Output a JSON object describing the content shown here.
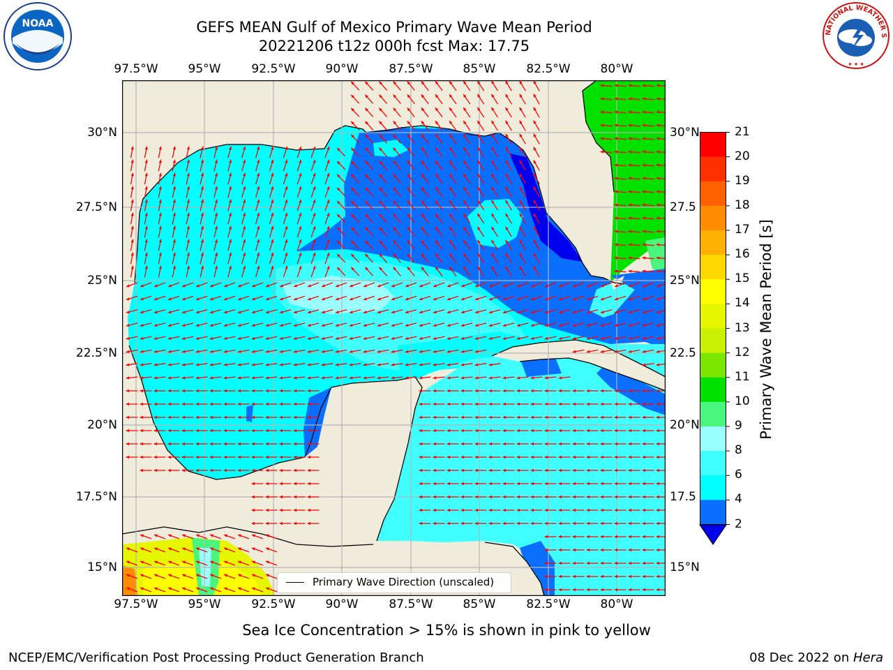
{
  "title_line1": "GEFS MEAN Gulf of Mexico Primary Wave Mean Period",
  "title_line2": "20221206 t12z 000h fcst   Max: 17.75",
  "map": {
    "lon_labels": [
      "97.5°W",
      "95°W",
      "92.5°W",
      "90°W",
      "87.5°W",
      "85°W",
      "82.5°W",
      "80°W"
    ],
    "lat_labels_left": [
      "30°N",
      "27.5°N",
      "25°N",
      "22.5°N",
      "20°N",
      "17.5°N",
      "15°N"
    ],
    "lat_labels_right": [
      "30°N",
      "27.5",
      "25°N",
      "22.5",
      "20°N",
      "17.5",
      "15°N"
    ],
    "legend_text": "Primary Wave Direction (unscaled)",
    "colors": {
      "land": "#efecdc",
      "ocean_4_6": "#00ffff",
      "ocean_6_8": "#40ffff",
      "ocean_8_9": "#9cffff",
      "ocean_2_4": "#0a6eff",
      "ocean_lt2": "#0000ee",
      "period_10_11": "#00e100",
      "period_9_10": "#4af57d",
      "period_14_15": "#e6f500",
      "period_15_16": "#ffff00",
      "period_17_18": "#ff8c00",
      "arrow": "#ff0000",
      "grid": "#b4b4b4"
    }
  },
  "colorbar": {
    "label": "Primary Wave Mean Period [s]",
    "ticks": [
      "21",
      "20",
      "19",
      "18",
      "17",
      "16",
      "15",
      "14",
      "13",
      "12",
      "11",
      "10",
      "9",
      "8",
      "6",
      "4",
      "2"
    ],
    "colors": [
      "#ff0000",
      "#ff3000",
      "#ff6000",
      "#ff8c00",
      "#ffb000",
      "#ffd800",
      "#ffff00",
      "#e6f500",
      "#c8f000",
      "#7de600",
      "#00e100",
      "#4af57d",
      "#9cffff",
      "#40ffff",
      "#00ffff",
      "#0a6eff"
    ],
    "under_color": "#0000ee"
  },
  "ice_note": "Sea Ice Concentration > 15% is shown in pink to yellow",
  "footer_left": "NCEP/EMC/Verification Post Processing Product Generation Branch",
  "footer_right_prefix": "08 Dec 2022 on ",
  "footer_right_host": "Hera",
  "logos": {
    "left": "NOAA",
    "right": "NATIONAL WEATHER SERVICE"
  }
}
